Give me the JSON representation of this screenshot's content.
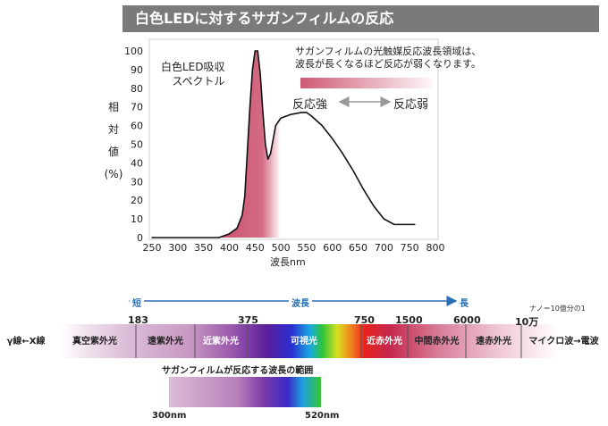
{
  "banner_title": "白色LEDに対するサガンフィルムの反応",
  "chart_data": {
    "type": "line",
    "series": [
      {
        "name": "白色LED吸収スペクトル",
        "x": [
          250,
          380,
          400,
          415,
          425,
          430,
          440,
          445,
          450,
          455,
          460,
          465,
          470,
          475,
          480,
          490,
          500,
          520,
          540,
          550,
          560,
          580,
          600,
          620,
          640,
          660,
          680,
          700,
          720,
          740,
          760
        ],
        "y": [
          0,
          0,
          2,
          5,
          12,
          22,
          70,
          90,
          100,
          100,
          88,
          68,
          50,
          42,
          45,
          60,
          64,
          66,
          67,
          67,
          65,
          60,
          53,
          45,
          36,
          26,
          17,
          10,
          7,
          7,
          7
        ]
      }
    ],
    "xlabel": "波長nm",
    "ylabel": [
      "相",
      "対",
      "値",
      "(%)"
    ],
    "xlim": [
      250,
      800
    ],
    "ylim": [
      0,
      100
    ],
    "xticks": [
      250,
      300,
      350,
      400,
      450,
      500,
      550,
      600,
      650,
      700,
      750,
      800
    ],
    "yticks": [
      0,
      10,
      20,
      30,
      40,
      50,
      60,
      70,
      80,
      90,
      100
    ],
    "grid": false,
    "shaded_under_curve_range": [
      380,
      500
    ],
    "curve_label": [
      "白色LED吸収",
      "スペクトル"
    ],
    "annotation": [
      "サガンフィルムの光触媒反応波長領域は、",
      "波長が長くなるほど反応が弱くなります。"
    ],
    "gradient_labels": {
      "strong": "反応強",
      "weak": "反応弱"
    }
  },
  "wavelength_bar": {
    "arrow_short": "短",
    "arrow_mid": "波長",
    "arrow_long": "長",
    "unit_note": "ナノ＝10億分の1",
    "markers": [
      "183",
      "375",
      "750",
      "1500",
      "6000",
      "10万"
    ],
    "segments": [
      "γ線←X線",
      "真空紫外光",
      "遠紫外光",
      "近紫外光",
      "可視光",
      "近赤外光",
      "中間赤外光",
      "遠赤外光",
      "マイクロ波→電波"
    ]
  },
  "response_range": {
    "title": "サガンフィルムが反応する波長の範囲",
    "start": "300nm",
    "end": "520nm"
  }
}
